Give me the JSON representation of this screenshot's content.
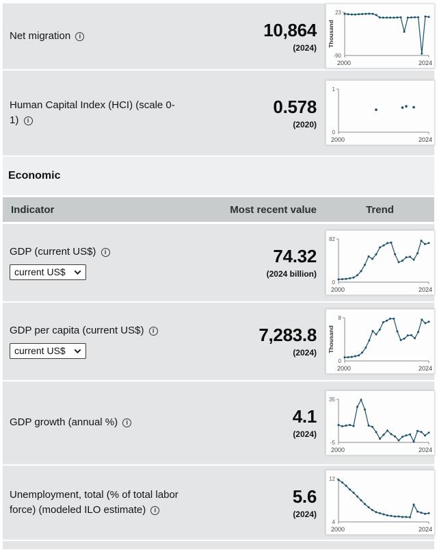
{
  "colors": {
    "line": "#17506b",
    "axis": "#85898c",
    "axis_num": "#5a5a5a",
    "axis_year": "#3f3f3f",
    "row_bg": "#e3e5e6",
    "header_bg": "#c9cccd",
    "section_bg": "#edeff0"
  },
  "section_title": "Economic",
  "header": {
    "indicator": "Indicator",
    "most_recent_value": "Most recent value",
    "trend": "Trend"
  },
  "rows": [
    {
      "label": "Net migration",
      "value": "10,864",
      "year": "(2024)",
      "chart": {
        "type": "line",
        "x_min": 2000,
        "x_max": 2024,
        "y_min": -90,
        "y_max": 23,
        "y_max_label": "23",
        "y_min_label": "-90",
        "x_min_label": "2000",
        "x_max_label": "2024",
        "y_title": "Thousand",
        "points": [
          [
            2000,
            19
          ],
          [
            2001,
            18
          ],
          [
            2002,
            17.5
          ],
          [
            2003,
            17.5
          ],
          [
            2004,
            18
          ],
          [
            2005,
            18.5
          ],
          [
            2006,
            19
          ],
          [
            2007,
            19.5
          ],
          [
            2008,
            19
          ],
          [
            2009,
            16
          ],
          [
            2010,
            9.5
          ],
          [
            2011,
            9
          ],
          [
            2012,
            9
          ],
          [
            2013,
            9
          ],
          [
            2014,
            9
          ],
          [
            2015,
            9.5
          ],
          [
            2016,
            10
          ],
          [
            2017,
            -28
          ],
          [
            2018,
            9
          ],
          [
            2019,
            9.5
          ],
          [
            2020,
            10
          ],
          [
            2021,
            10
          ],
          [
            2022,
            -85
          ],
          [
            2023,
            12
          ],
          [
            2024,
            10.9
          ]
        ]
      }
    },
    {
      "label": "Human Capital Index (HCI) (scale 0-1)",
      "value": "0.578",
      "year": "(2020)",
      "chart": {
        "type": "scatter",
        "x_min": 2000,
        "x_max": 2024,
        "y_min": 0,
        "y_max": 1,
        "y_max_label": "1",
        "y_min_label": "0",
        "x_min_label": "2000",
        "x_max_label": "2024",
        "y_title": "",
        "points": [
          [
            2010,
            0.52
          ],
          [
            2017,
            0.57
          ],
          [
            2018,
            0.6
          ],
          [
            2020,
            0.578
          ]
        ]
      }
    },
    {
      "label": "GDP (current US$)",
      "dropdown_value": "current US$",
      "value": "74.32",
      "year": "(2024 billion)",
      "chart": {
        "type": "line",
        "x_min": 2000,
        "x_max": 2024,
        "y_min": 0,
        "y_max": 82,
        "y_max_label": "82",
        "y_min_label": "0",
        "x_min_label": "2000",
        "x_max_label": "2024",
        "y_title": "",
        "points": [
          [
            2000,
            5.3
          ],
          [
            2001,
            5.7
          ],
          [
            2002,
            6.2
          ],
          [
            2003,
            7.3
          ],
          [
            2004,
            8.7
          ],
          [
            2005,
            13.2
          ],
          [
            2006,
            21
          ],
          [
            2007,
            33.1
          ],
          [
            2008,
            48.9
          ],
          [
            2009,
            44.3
          ],
          [
            2010,
            52.9
          ],
          [
            2011,
            66
          ],
          [
            2012,
            69.7
          ],
          [
            2013,
            74.2
          ],
          [
            2014,
            75.2
          ],
          [
            2015,
            53.1
          ],
          [
            2016,
            37.9
          ],
          [
            2017,
            40.9
          ],
          [
            2018,
            47.1
          ],
          [
            2019,
            48.2
          ],
          [
            2020,
            42.7
          ],
          [
            2021,
            54.8
          ],
          [
            2022,
            78.8
          ],
          [
            2023,
            72.4
          ],
          [
            2024,
            74.3
          ]
        ]
      }
    },
    {
      "label": "GDP per capita (current US$)",
      "dropdown_value": "current US$",
      "value": "7,283.8",
      "year": "(2024)",
      "chart": {
        "type": "line",
        "x_min": 2000,
        "x_max": 2024,
        "y_min": 0,
        "y_max": 8,
        "y_max_label": "8",
        "y_min_label": "0",
        "x_min_label": "2000",
        "x_max_label": "2024",
        "y_title": "Thousand",
        "points": [
          [
            2000,
            0.66
          ],
          [
            2001,
            0.69
          ],
          [
            2002,
            0.75
          ],
          [
            2003,
            0.87
          ],
          [
            2004,
            1.02
          ],
          [
            2005,
            1.55
          ],
          [
            2006,
            2.46
          ],
          [
            2007,
            3.81
          ],
          [
            2008,
            5.54
          ],
          [
            2009,
            4.92
          ],
          [
            2010,
            5.82
          ],
          [
            2011,
            7.17
          ],
          [
            2012,
            7.46
          ],
          [
            2013,
            7.84
          ],
          [
            2014,
            7.84
          ],
          [
            2015,
            5.47
          ],
          [
            2016,
            3.87
          ],
          [
            2017,
            4.13
          ],
          [
            2018,
            4.72
          ],
          [
            2019,
            4.78
          ],
          [
            2020,
            4.2
          ],
          [
            2021,
            5.36
          ],
          [
            2022,
            7.65
          ],
          [
            2023,
            7.0
          ],
          [
            2024,
            7.28
          ]
        ]
      }
    },
    {
      "label": "GDP growth (annual %)",
      "value": "4.1",
      "year": "(2024)",
      "chart": {
        "type": "line",
        "x_min": 2000,
        "x_max": 2024,
        "y_min": -5,
        "y_max": 35,
        "y_max_label": "35",
        "y_min_label": "-5",
        "x_min_label": "2000",
        "x_max_label": "2024",
        "y_title": "",
        "points": [
          [
            2000,
            11.1
          ],
          [
            2001,
            9.9
          ],
          [
            2002,
            10.6
          ],
          [
            2003,
            11.2
          ],
          [
            2004,
            10.2
          ],
          [
            2005,
            28
          ],
          [
            2006,
            34.5
          ],
          [
            2007,
            25.5
          ],
          [
            2008,
            10.6
          ],
          [
            2009,
            9.4
          ],
          [
            2010,
            4.6
          ],
          [
            2011,
            -1.6
          ],
          [
            2012,
            2.1
          ],
          [
            2013,
            5.9
          ],
          [
            2014,
            2.7
          ],
          [
            2015,
            0.6
          ],
          [
            2016,
            -3.1
          ],
          [
            2017,
            0.2
          ],
          [
            2018,
            1.5
          ],
          [
            2019,
            2.5
          ],
          [
            2020,
            -4.2
          ],
          [
            2021,
            5.6
          ],
          [
            2022,
            4.7
          ],
          [
            2023,
            1.4
          ],
          [
            2024,
            4.1
          ]
        ]
      }
    },
    {
      "label": "Unemployment, total (% of total labor force) (modeled ILO estimate)",
      "value": "5.6",
      "year": "(2024)",
      "chart": {
        "type": "line",
        "x_min": 2000,
        "x_max": 2024,
        "y_min": 4,
        "y_max": 12,
        "y_max_label": "12",
        "y_min_label": "4",
        "x_min_label": "2000",
        "x_max_label": "2024",
        "y_title": "",
        "points": [
          [
            2000,
            11.8
          ],
          [
            2001,
            11.3
          ],
          [
            2002,
            10.7
          ],
          [
            2003,
            10
          ],
          [
            2004,
            9.4
          ],
          [
            2005,
            8.7
          ],
          [
            2006,
            8
          ],
          [
            2007,
            7.3
          ],
          [
            2008,
            6.7
          ],
          [
            2009,
            6.2
          ],
          [
            2010,
            5.8
          ],
          [
            2011,
            5.6
          ],
          [
            2012,
            5.4
          ],
          [
            2013,
            5.2
          ],
          [
            2014,
            5.1
          ],
          [
            2015,
            5
          ],
          [
            2016,
            5
          ],
          [
            2017,
            4.9
          ],
          [
            2018,
            4.9
          ],
          [
            2019,
            4.85
          ],
          [
            2020,
            7.2
          ],
          [
            2021,
            5.9
          ],
          [
            2022,
            5.7
          ],
          [
            2023,
            5.5
          ],
          [
            2024,
            5.6
          ]
        ]
      }
    }
  ]
}
